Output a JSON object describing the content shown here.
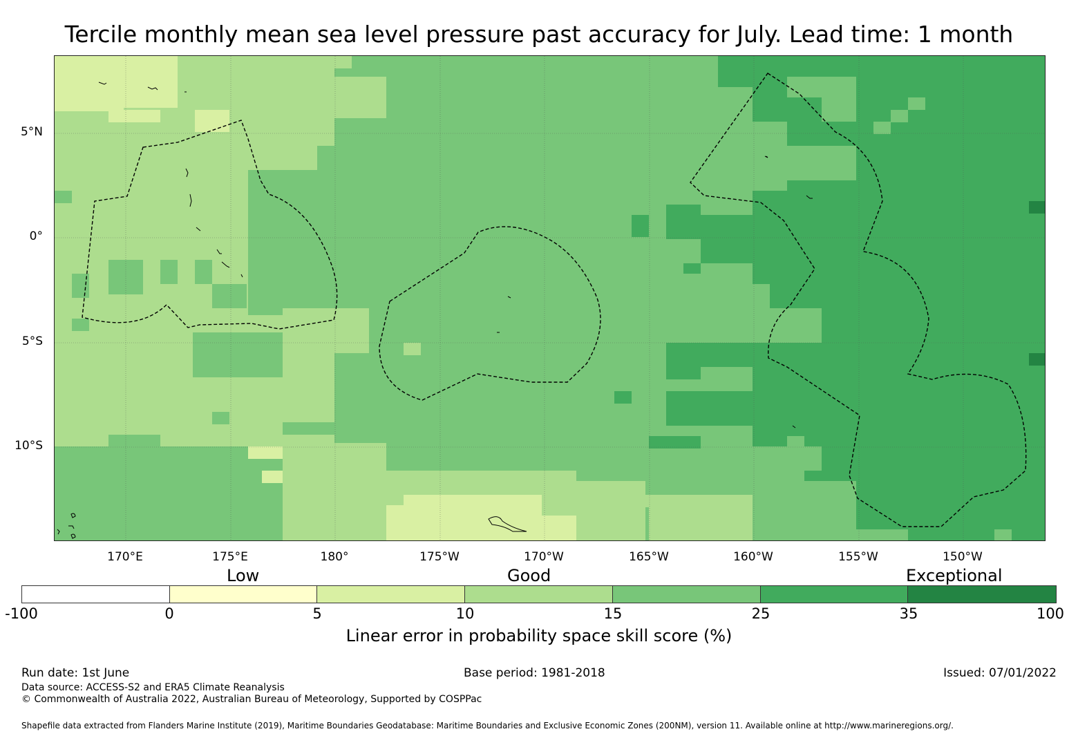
{
  "title": "Tercile monthly mean sea level pressure past accuracy for July. Lead time: 1 month",
  "map": {
    "lat_ticks": [
      "5°N",
      "0°",
      "5°S",
      "10°S"
    ],
    "lon_ticks": [
      "170°E",
      "175°E",
      "180°",
      "175°W",
      "170°W",
      "165°W",
      "160°W",
      "155°W",
      "150°W"
    ]
  },
  "categories": [
    "Low",
    "Good",
    "Exceptional"
  ],
  "colorbar": {
    "boundaries": [
      "-100",
      "0",
      "5",
      "10",
      "15",
      "25",
      "35",
      "100"
    ],
    "colors": [
      "#ffffff",
      "#ffffcc",
      "#d9f0a3",
      "#addd8e",
      "#78c679",
      "#41ab5d",
      "#238443"
    ],
    "label": "Linear error in probability space skill score (%)"
  },
  "footer": {
    "run_date": "Run date: 1st June",
    "base_period": "Base period: 1981-2018",
    "issued": "Issued: 07/01/2022",
    "data_source": "Data source: ACCESS-S2 and ERA5 Climate Reanalysis",
    "copyright": "© Commonwealth of Australia 2022, Australian Bureau of Meteorology, Supported by COSPPac",
    "shapefile_note": "Shapefile data extracted from Flanders Marine Institute (2019), Maritime Boundaries Geodatabase: Maritime Boundaries and Exclusive Economic Zones (200NM), version 11. Available online at http://www.marineregions.org/."
  }
}
